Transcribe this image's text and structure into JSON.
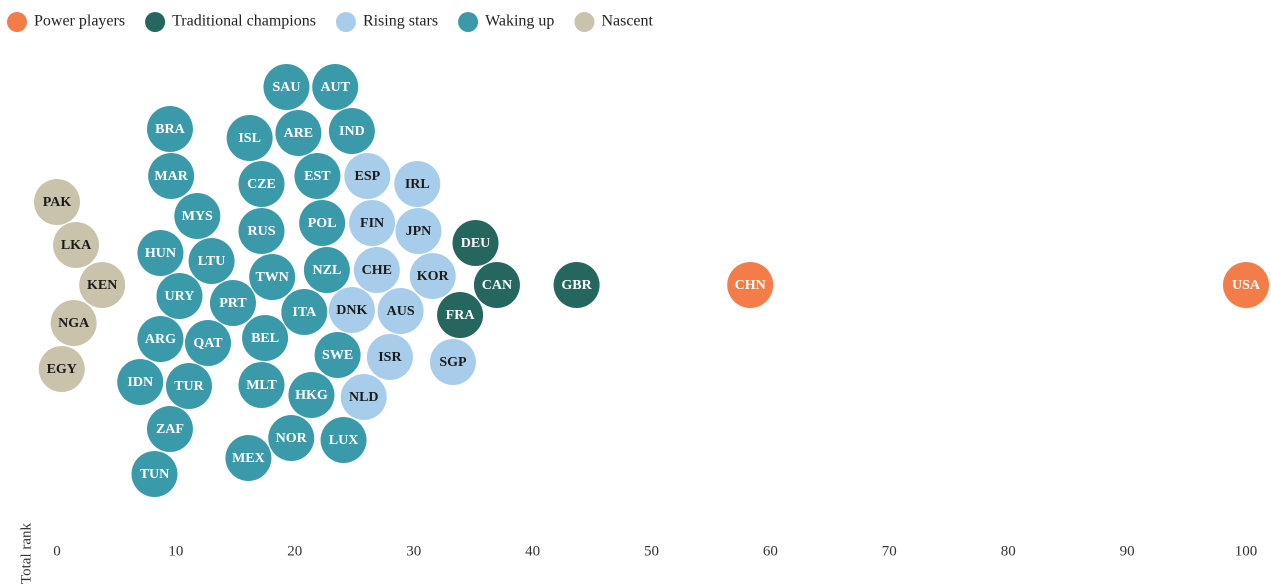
{
  "chart_data": {
    "type": "beeswarm",
    "xlabel": "Total rank",
    "xlim": [
      0,
      100
    ],
    "xticks": [
      0,
      10,
      20,
      30,
      40,
      50,
      60,
      70,
      80,
      90,
      100
    ],
    "legend": "top-left",
    "series": [
      {
        "name": "Power players",
        "color": "#f47c48",
        "labels": [
          "CHN",
          "USA"
        ],
        "values": [
          58.3,
          100
        ]
      },
      {
        "name": "Traditional champions",
        "color": "#25665e",
        "labels": [
          "GBR",
          "CAN",
          "DEU",
          "FRA"
        ],
        "values": [
          43.7,
          37.0,
          35.2,
          33.9
        ]
      },
      {
        "name": "Rising stars",
        "color": "#a8cdea",
        "labels": [
          "SGP",
          "KOR",
          "JPN",
          "IRL",
          "AUS",
          "ISR",
          "CHE",
          "FIN",
          "ESP",
          "NLD",
          "DNK"
        ],
        "values": [
          33.3,
          31.6,
          30.4,
          30.3,
          28.9,
          28.0,
          26.9,
          26.5,
          26.1,
          25.8,
          24.8
        ]
      },
      {
        "name": "Waking up",
        "color": "#3b9aaa",
        "labels": [
          "IND",
          "LUX",
          "SWE",
          "AUT",
          "NZL",
          "POL",
          "EST",
          "HKG",
          "ITA",
          "ARE",
          "NOR",
          "SAU",
          "TWN",
          "BEL",
          "RUS",
          "MLT",
          "CZE",
          "ISL",
          "MEX",
          "PRT",
          "LTU",
          "QAT",
          "MYS",
          "TUR",
          "URY",
          "MAR",
          "ZAF",
          "BRA",
          "HUN",
          "ARG",
          "TUN",
          "IDN"
        ],
        "values": [
          24.8,
          24.1,
          23.6,
          23.4,
          22.7,
          22.3,
          21.9,
          21.4,
          20.8,
          20.3,
          19.7,
          19.3,
          18.1,
          17.5,
          17.2,
          17.2,
          17.2,
          16.2,
          16.1,
          14.8,
          13.0,
          12.7,
          11.8,
          11.1,
          10.3,
          9.6,
          9.5,
          9.5,
          8.7,
          8.7,
          8.2,
          7.0
        ]
      },
      {
        "name": "Nascent",
        "color": "#c9c3ac",
        "labels": [
          "KEN",
          "LKA",
          "NGA",
          "EGY",
          "PAK"
        ],
        "values": [
          3.8,
          1.6,
          1.4,
          0.4,
          0
        ]
      }
    ]
  }
}
